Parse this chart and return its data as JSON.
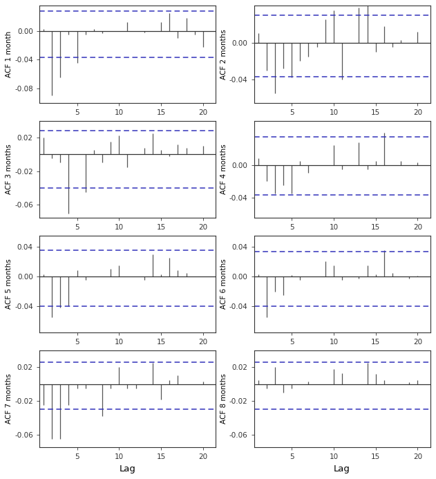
{
  "panels": [
    {
      "label": "ACF 1 month",
      "ylim": [
        -0.1,
        0.035
      ],
      "yticks": [
        -0.08,
        -0.04,
        0.0
      ],
      "conf_upper": 0.028,
      "conf_lower": -0.037,
      "acf": [
        0.003,
        -0.09,
        -0.065,
        -0.005,
        -0.045,
        -0.005,
        0.003,
        -0.003,
        0.0,
        0.0,
        0.012,
        0.0,
        -0.002,
        0.0,
        0.012,
        0.025,
        -0.01,
        0.018,
        -0.005,
        -0.022
      ]
    },
    {
      "label": "ACF 2 months",
      "ylim": [
        -0.065,
        0.04
      ],
      "yticks": [
        -0.04,
        0.0
      ],
      "conf_upper": 0.03,
      "conf_lower": -0.037,
      "acf": [
        0.01,
        -0.03,
        -0.055,
        -0.028,
        -0.038,
        -0.02,
        -0.015,
        -0.005,
        0.025,
        0.035,
        -0.04,
        0.0,
        0.038,
        0.04,
        -0.01,
        0.018,
        -0.005,
        0.003,
        0.0,
        0.012
      ]
    },
    {
      "label": "ACF 3 months",
      "ylim": [
        -0.075,
        0.04
      ],
      "yticks": [
        -0.06,
        -0.02,
        0.02
      ],
      "conf_upper": 0.028,
      "conf_lower": -0.04,
      "acf": [
        0.02,
        -0.005,
        -0.01,
        -0.07,
        0.0,
        -0.045,
        0.005,
        -0.01,
        0.015,
        0.022,
        -0.015,
        0.0,
        0.008,
        0.025,
        0.005,
        -0.002,
        0.012,
        0.008,
        0.0,
        0.01
      ]
    },
    {
      "label": "ACF 4 months",
      "ylim": [
        -0.065,
        0.055
      ],
      "yticks": [
        -0.04,
        0.0
      ],
      "conf_upper": 0.035,
      "conf_lower": -0.037,
      "acf": [
        0.008,
        -0.02,
        -0.035,
        -0.025,
        -0.035,
        0.005,
        -0.01,
        0.0,
        0.0,
        0.025,
        -0.005,
        0.0,
        0.028,
        -0.005,
        0.005,
        0.04,
        0.0,
        0.005,
        0.0,
        0.003
      ]
    },
    {
      "label": "ACF 5 months",
      "ylim": [
        -0.075,
        0.055
      ],
      "yticks": [
        -0.04,
        0.0,
        0.04
      ],
      "conf_upper": 0.035,
      "conf_lower": -0.04,
      "acf": [
        0.003,
        -0.055,
        -0.042,
        -0.04,
        0.008,
        -0.005,
        0.0,
        0.0,
        0.01,
        0.015,
        0.0,
        0.0,
        -0.005,
        0.03,
        0.003,
        0.025,
        0.008,
        0.005,
        0.0,
        0.0
      ]
    },
    {
      "label": "ACF 6 months",
      "ylim": [
        -0.075,
        0.055
      ],
      "yticks": [
        -0.04,
        0.0,
        0.04
      ],
      "conf_upper": 0.033,
      "conf_lower": -0.04,
      "acf": [
        0.003,
        -0.055,
        -0.02,
        -0.025,
        0.002,
        -0.005,
        0.0,
        0.0,
        0.02,
        0.015,
        -0.005,
        0.0,
        -0.003,
        0.015,
        0.003,
        0.035,
        0.005,
        0.0,
        -0.003,
        0.001
      ]
    },
    {
      "label": "ACF 7 months",
      "ylim": [
        -0.075,
        0.04
      ],
      "yticks": [
        -0.06,
        -0.02,
        0.02
      ],
      "conf_upper": 0.026,
      "conf_lower": -0.03,
      "acf": [
        -0.025,
        -0.065,
        -0.065,
        -0.025,
        -0.005,
        -0.005,
        0.0,
        -0.038,
        -0.005,
        0.02,
        -0.005,
        -0.005,
        0.0,
        0.025,
        -0.018,
        0.005,
        0.01,
        0.0,
        0.0,
        0.003
      ]
    },
    {
      "label": "ACF 8 months",
      "ylim": [
        -0.075,
        0.04
      ],
      "yticks": [
        -0.06,
        -0.02,
        0.02
      ],
      "conf_upper": 0.026,
      "conf_lower": -0.03,
      "acf": [
        0.005,
        -0.005,
        0.02,
        -0.01,
        -0.005,
        0.0,
        0.003,
        0.0,
        0.0,
        0.018,
        0.013,
        0.0,
        0.0,
        0.025,
        0.012,
        0.005,
        0.0,
        0.0,
        0.002,
        0.005
      ]
    }
  ],
  "lags": [
    1,
    2,
    3,
    4,
    5,
    6,
    7,
    8,
    9,
    10,
    11,
    12,
    13,
    14,
    15,
    16,
    17,
    18,
    19,
    20
  ],
  "bar_color": "#555555",
  "conf_color": "#3333bb",
  "background_color": "#ffffff",
  "xlabel": "Lag",
  "ylabel_fontsize": 7.5,
  "tick_fontsize": 7.5,
  "xlabel_fontsize": 9.5
}
